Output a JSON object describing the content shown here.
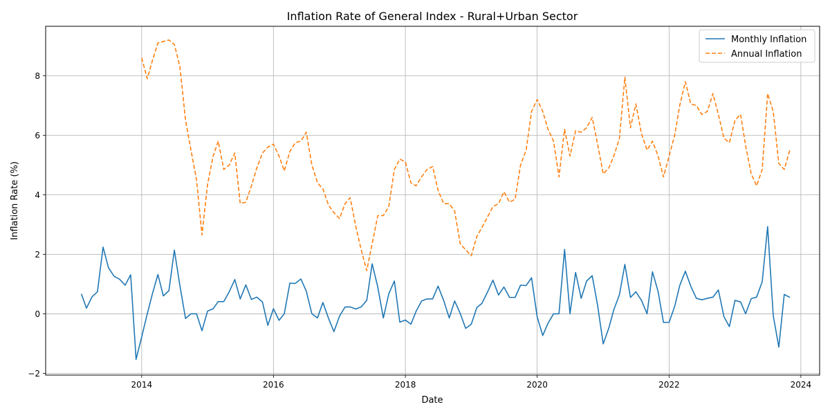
{
  "chart_data": {
    "type": "line",
    "title": "Inflation Rate of General Index - Rural+Urban Sector",
    "xlabel": "Date",
    "ylabel": "Inflation Rate (%)",
    "xlim": [
      "2012-07-18",
      "2024-04-14"
    ],
    "ylim": [
      -2.06,
      9.66
    ],
    "x_ticks": [
      "2014",
      "2016",
      "2018",
      "2020",
      "2022",
      "2024"
    ],
    "y_ticks": [
      -2,
      0,
      2,
      4,
      6,
      8
    ],
    "grid": true,
    "legend_position": "top-right",
    "series": [
      {
        "name": "Monthly Inflation",
        "color": "#1f77b4",
        "dash": "solid",
        "start": "2013-02",
        "values": [
          0.67,
          0.19,
          0.57,
          0.74,
          2.24,
          1.55,
          1.26,
          1.16,
          0.96,
          1.31,
          -1.53,
          -0.78,
          0.0,
          0.66,
          1.32,
          0.6,
          0.78,
          2.14,
          0.94,
          -0.16,
          0.0,
          0.0,
          -0.57,
          0.09,
          0.17,
          0.41,
          0.41,
          0.74,
          1.15,
          0.5,
          0.97,
          0.48,
          0.56,
          0.4,
          -0.39,
          0.17,
          -0.22,
          0.0,
          1.03,
          1.02,
          1.17,
          0.76,
          0.0,
          -0.14,
          0.38,
          -0.15,
          -0.6,
          -0.08,
          0.23,
          0.23,
          0.16,
          0.23,
          0.45,
          1.68,
          0.9,
          -0.14,
          0.67,
          1.1,
          -0.28,
          -0.21,
          -0.35,
          0.08,
          0.43,
          0.5,
          0.5,
          0.93,
          0.45,
          -0.14,
          0.43,
          0.01,
          -0.49,
          -0.35,
          0.21,
          0.35,
          0.73,
          1.13,
          0.63,
          0.9,
          0.55,
          0.55,
          0.96,
          0.95,
          1.21,
          -0.1,
          -0.73,
          -0.32,
          0.0,
          0.0,
          2.16,
          0.0,
          1.39,
          0.52,
          1.1,
          1.28,
          0.28,
          -1.01,
          -0.48,
          0.14,
          0.64,
          1.66,
          0.55,
          0.74,
          0.45,
          0.0,
          1.41,
          0.75,
          -0.29,
          -0.29,
          0.25,
          0.95,
          1.43,
          0.93,
          0.52,
          0.47,
          0.52,
          0.56,
          0.8,
          -0.1,
          -0.43,
          0.45,
          0.4,
          0.0,
          0.51,
          0.56,
          1.08,
          2.93,
          -0.06,
          -1.12,
          0.65,
          0.55
        ]
      },
      {
        "name": "Annual Inflation",
        "color": "#ff7f0e",
        "dash": "dashed",
        "start": "2014-01",
        "values": [
          8.6,
          7.9,
          8.5,
          9.1,
          9.15,
          9.2,
          9.05,
          8.3,
          6.5,
          5.5,
          4.5,
          2.65,
          4.35,
          5.3,
          5.8,
          4.85,
          5.0,
          5.4,
          3.7,
          3.75,
          4.3,
          4.9,
          5.4,
          5.6,
          5.7,
          5.3,
          4.8,
          5.45,
          5.75,
          5.8,
          6.1,
          5.0,
          4.4,
          4.2,
          3.65,
          3.4,
          3.2,
          3.7,
          3.9,
          2.95,
          2.15,
          1.45,
          2.35,
          3.3,
          3.3,
          3.6,
          4.85,
          5.2,
          5.1,
          4.4,
          4.3,
          4.6,
          4.85,
          4.95,
          4.15,
          3.7,
          3.7,
          3.45,
          2.35,
          2.15,
          1.95,
          2.6,
          2.9,
          3.25,
          3.6,
          3.7,
          4.1,
          3.75,
          3.85,
          5.0,
          5.5,
          6.8,
          7.2,
          6.8,
          6.2,
          5.8,
          4.6,
          6.2,
          5.3,
          6.15,
          6.1,
          6.25,
          6.6,
          5.7,
          4.7,
          4.9,
          5.3,
          5.9,
          7.95,
          6.25,
          7.05,
          6.05,
          5.5,
          5.8,
          5.3,
          4.6,
          5.3,
          6.0,
          7.0,
          7.8,
          7.05,
          7.0,
          6.7,
          6.8,
          7.4,
          6.7,
          5.9,
          5.75,
          6.5,
          6.7,
          5.65,
          4.7,
          4.3,
          4.85,
          7.4,
          6.8,
          5.05,
          4.85,
          5.5
        ]
      }
    ]
  }
}
